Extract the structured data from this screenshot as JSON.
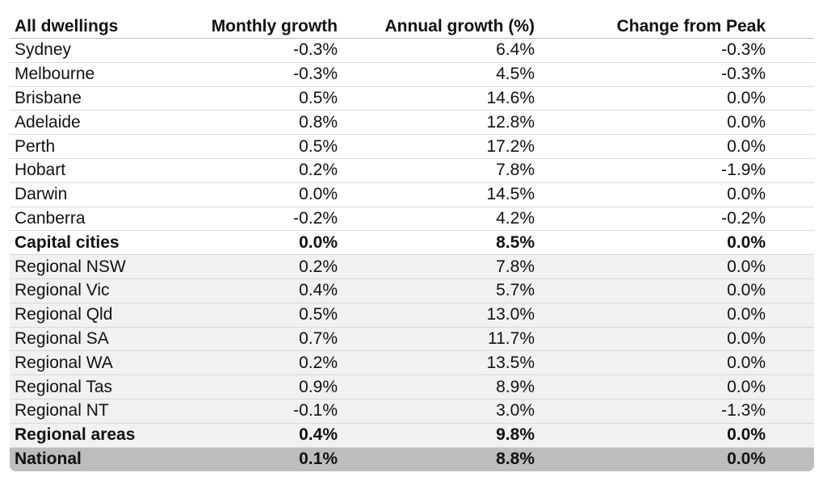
{
  "table": {
    "columns": [
      "All dwellings",
      "Monthly growth",
      "Annual growth (%)",
      "Change from Peak"
    ],
    "rows": [
      [
        "Sydney",
        "-0.3%",
        "6.4%",
        "-0.3%"
      ],
      [
        "Melbourne",
        "-0.3%",
        "4.5%",
        "-0.3%"
      ],
      [
        "Brisbane",
        "0.5%",
        "14.6%",
        "0.0%"
      ],
      [
        "Adelaide",
        "0.8%",
        "12.8%",
        "0.0%"
      ],
      [
        "Perth",
        "0.5%",
        "17.2%",
        "0.0%"
      ],
      [
        "Hobart",
        "0.2%",
        "7.8%",
        "-1.9%"
      ],
      [
        "Darwin",
        "0.0%",
        "14.5%",
        "0.0%"
      ],
      [
        "Canberra",
        "-0.2%",
        "4.2%",
        "-0.2%"
      ],
      [
        "Capital cities",
        "0.0%",
        "8.5%",
        "0.0%"
      ],
      [
        "Regional NSW",
        "0.2%",
        "7.8%",
        "0.0%"
      ],
      [
        "Regional Vic",
        "0.4%",
        "5.7%",
        "0.0%"
      ],
      [
        "Regional Qld",
        "0.5%",
        "13.0%",
        "0.0%"
      ],
      [
        "Regional SA",
        "0.7%",
        "11.7%",
        "0.0%"
      ],
      [
        "Regional WA",
        "0.2%",
        "13.5%",
        "0.0%"
      ],
      [
        "Regional Tas",
        "0.9%",
        "8.9%",
        "0.0%"
      ],
      [
        "Regional NT",
        "-0.1%",
        "3.0%",
        "-1.3%"
      ],
      [
        "Regional areas",
        "0.4%",
        "9.8%",
        "0.0%"
      ],
      [
        "National",
        "0.1%",
        "8.8%",
        "0.0%"
      ]
    ]
  }
}
